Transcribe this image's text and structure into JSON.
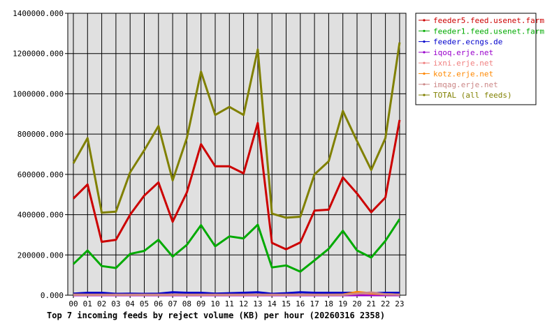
{
  "chart_data": {
    "type": "line",
    "title": "Top 7 incoming feeds by reject volume (KB) per hour (20260316 2358)",
    "xlabel": "",
    "ylabel": "",
    "ylim": [
      0,
      1400000
    ],
    "yticks": [
      0,
      200000,
      400000,
      600000,
      800000,
      1000000,
      1200000,
      1400000
    ],
    "ytick_labels": [
      "0.000",
      "200000.000",
      "400000.000",
      "600000.000",
      "800000.000",
      "1000000.000",
      "1200000.000",
      "1400000.000"
    ],
    "categories": [
      "00",
      "01",
      "02",
      "03",
      "04",
      "05",
      "06",
      "07",
      "08",
      "09",
      "10",
      "11",
      "12",
      "13",
      "14",
      "15",
      "16",
      "17",
      "18",
      "19",
      "20",
      "21",
      "22",
      "23"
    ],
    "grid": true,
    "legend_position": "top-right",
    "series": [
      {
        "name": "feeder5.feed.usenet.farm",
        "color": "#cc0000",
        "values": [
          480000,
          550000,
          265000,
          275000,
          400000,
          495000,
          560000,
          365000,
          510000,
          750000,
          640000,
          640000,
          605000,
          855000,
          260000,
          228000,
          262000,
          420000,
          425000,
          585000,
          505000,
          412000,
          485000,
          870000
        ]
      },
      {
        "name": "feeder1.feed.usenet.farm",
        "color": "#00aa00",
        "values": [
          155000,
          222000,
          145000,
          135000,
          205000,
          220000,
          275000,
          192000,
          250000,
          348000,
          243000,
          292000,
          282000,
          350000,
          138000,
          148000,
          117000,
          173000,
          230000,
          320000,
          222000,
          187000,
          270000,
          378000
        ]
      },
      {
        "name": "feeder.ecngs.de",
        "color": "#0000cc",
        "values": [
          8000,
          12000,
          12000,
          7000,
          8000,
          7000,
          8000,
          15000,
          12000,
          12000,
          8000,
          10000,
          12000,
          15000,
          7000,
          10000,
          15000,
          12000,
          12000,
          12000,
          12000,
          10000,
          12000,
          12000
        ]
      },
      {
        "name": "iqoq.erje.net",
        "color": "#9900cc",
        "values": [
          0,
          0,
          0,
          0,
          0,
          0,
          0,
          0,
          0,
          0,
          0,
          0,
          0,
          0,
          0,
          0,
          0,
          0,
          0,
          0,
          0,
          0,
          0,
          0
        ]
      },
      {
        "name": "ixni.erje.net",
        "color": "#f08080",
        "values": [
          2000,
          2000,
          2000,
          2000,
          2000,
          2000,
          2000,
          2000,
          2000,
          2000,
          2000,
          2000,
          2000,
          2000,
          2000,
          2000,
          2000,
          2000,
          2000,
          2000,
          10000,
          8000,
          4000,
          3000
        ]
      },
      {
        "name": "kotz.erje.net",
        "color": "#ff8800",
        "values": [
          3000,
          2000,
          2000,
          2000,
          2000,
          2000,
          2000,
          2000,
          2000,
          2000,
          2000,
          2000,
          2000,
          2000,
          2000,
          2000,
          2000,
          2000,
          2000,
          3000,
          16000,
          10000,
          5000,
          3000
        ]
      },
      {
        "name": "imqag.erje.net",
        "color": "#cc8888",
        "values": [
          2000,
          2000,
          2000,
          2000,
          2000,
          2000,
          2000,
          2000,
          2000,
          2000,
          2000,
          2000,
          2000,
          2000,
          2000,
          2000,
          2000,
          2000,
          2000,
          2000,
          8000,
          14000,
          5000,
          3000
        ]
      },
      {
        "name": "TOTAL (all feeds)",
        "color": "#808000",
        "values": [
          655000,
          780000,
          410000,
          415000,
          610000,
          720000,
          840000,
          570000,
          780000,
          1110000,
          895000,
          935000,
          895000,
          1220000,
          405000,
          385000,
          390000,
          600000,
          665000,
          915000,
          765000,
          622000,
          780000,
          1255000
        ]
      }
    ]
  }
}
